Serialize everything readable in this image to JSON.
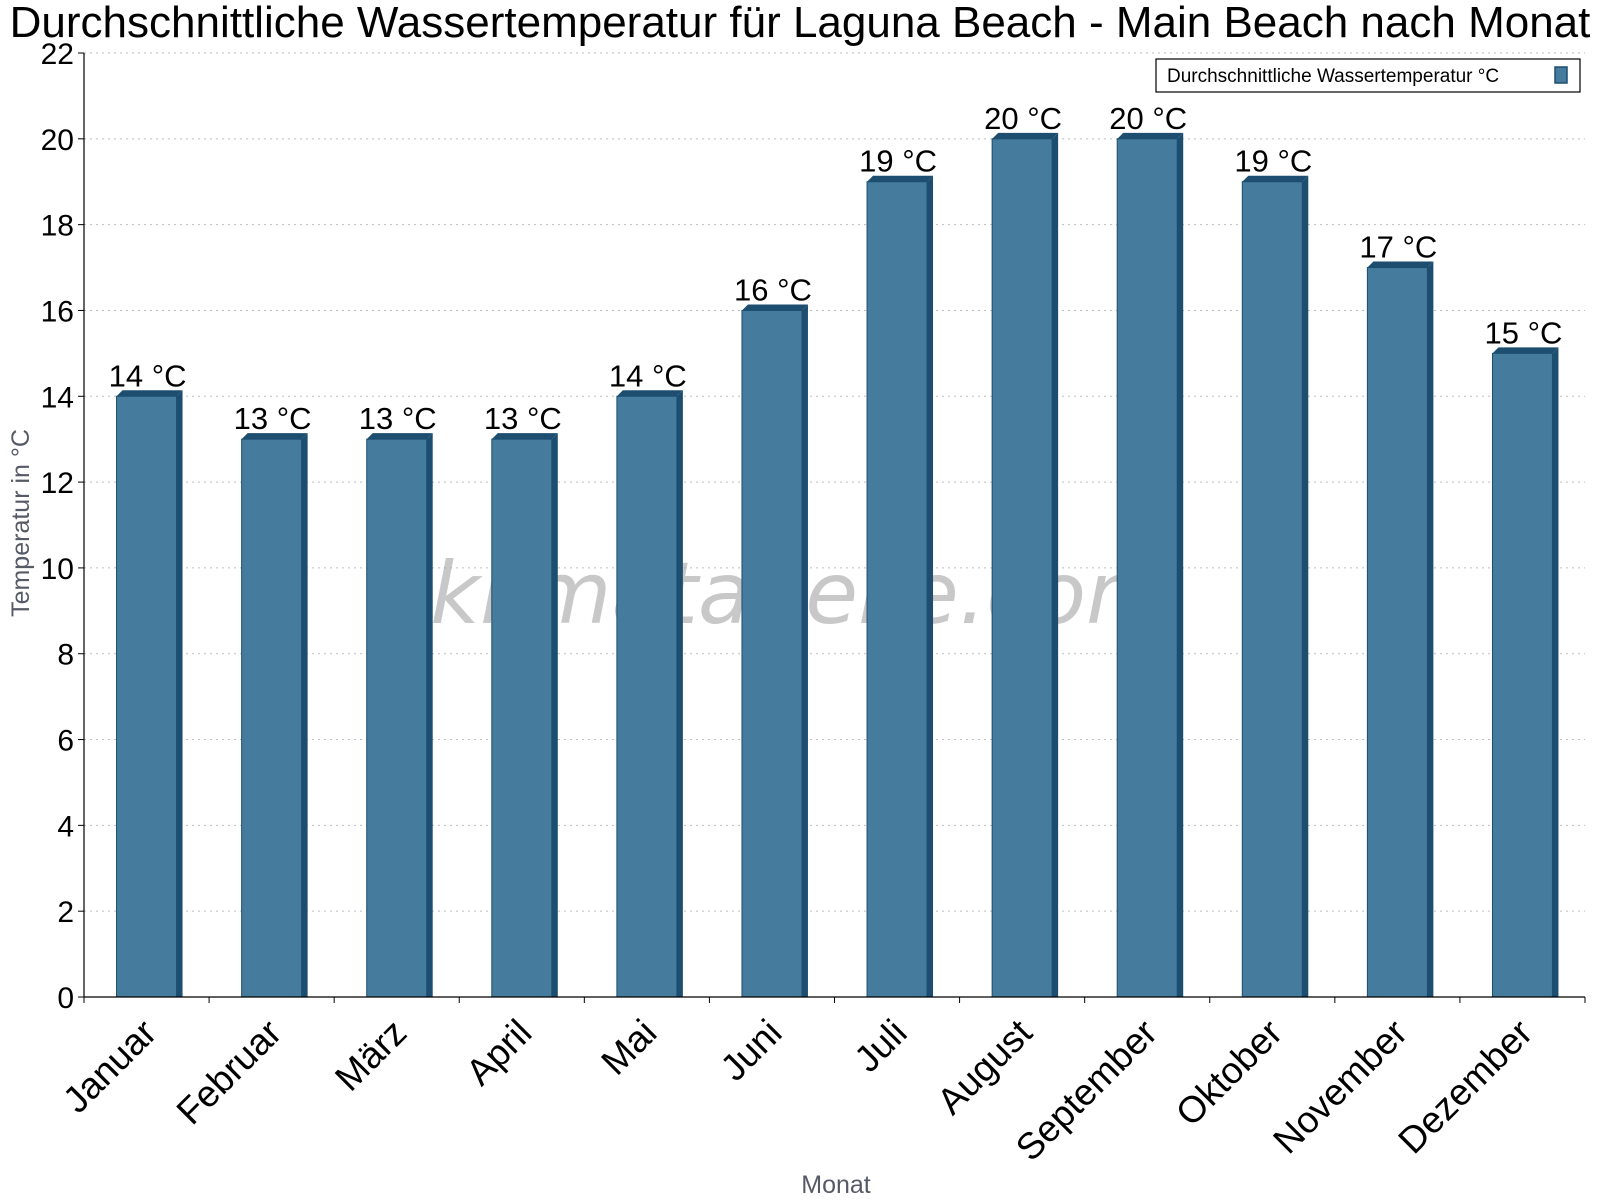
{
  "chart_data": {
    "type": "bar",
    "title": "Durchschnittliche Wassertemperatur für Laguna Beach - Main Beach nach Monat",
    "xlabel": "Monat",
    "ylabel": "Temperatur in °C",
    "ylim": [
      0,
      22
    ],
    "yticks": [
      "0",
      "2",
      "4",
      "6",
      "8",
      "10",
      "12",
      "14",
      "16",
      "18",
      "20",
      "22"
    ],
    "grid": true,
    "legend_position": "top-right",
    "categories": [
      "Januar",
      "Februar",
      "März",
      "April",
      "Mai",
      "Juni",
      "Juli",
      "August",
      "September",
      "Oktober",
      "November",
      "Dezember"
    ],
    "series": [
      {
        "name": "Durchschnittliche Wassertemperatur °C",
        "values": [
          14,
          13,
          13,
          13,
          14,
          16,
          19,
          20,
          20,
          19,
          17,
          15
        ],
        "labels": [
          "14 °C",
          "13 °C",
          "13 °C",
          "13 °C",
          "14 °C",
          "16 °C",
          "19 °C",
          "20 °C",
          "20 °C",
          "19 °C",
          "17 °C",
          "15 °C"
        ],
        "color": "#457b9d",
        "shade_color": "#1d4e70"
      }
    ]
  },
  "watermark": "klimatabelle.com"
}
